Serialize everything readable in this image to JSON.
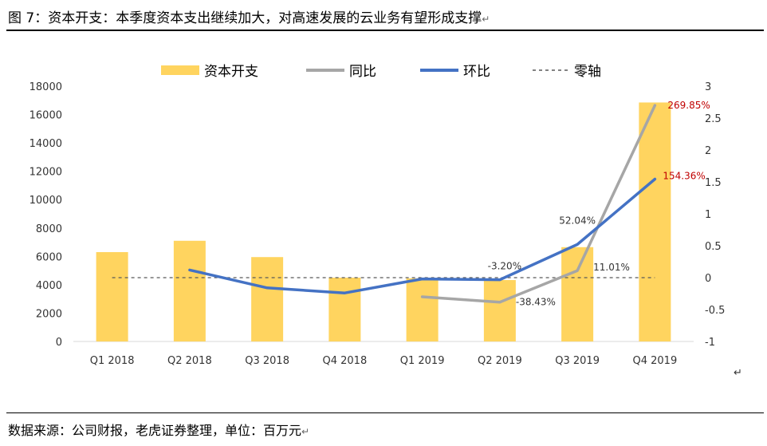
{
  "title": "图 7：资本开支：本季度资本支出继续加大，对高速发展的云业务有望形成支撑",
  "title_mark": "↵",
  "source": "数据来源：公司财报，老虎证券整理，单位：百万元",
  "source_mark": "↵",
  "stray_mark": "↵",
  "colors": {
    "capex": "#FFD45F",
    "yoy": "#A6A6A6",
    "qoq": "#4472C4",
    "zero": "#595959",
    "label_red": "#C00000"
  },
  "chart_data": {
    "type": "bar",
    "categories": [
      "Q1 2018",
      "Q2 2018",
      "Q3 2018",
      "Q4 2018",
      "Q1 2019",
      "Q2 2019",
      "Q3 2019",
      "Q4 2019"
    ],
    "y_left": {
      "range": [
        0,
        18000
      ],
      "ticks": [
        "0",
        "2000",
        "4000",
        "6000",
        "8000",
        "10000",
        "12000",
        "14000",
        "16000",
        "18000"
      ]
    },
    "y_right": {
      "range": [
        -1,
        3
      ],
      "ticks": [
        "-1",
        "-0.5",
        "0",
        "0.5",
        "1",
        "1.5",
        "2",
        "2.5",
        "3"
      ]
    },
    "legend": [
      "资本开支",
      "同比",
      "环比",
      "零轴"
    ],
    "legend_position": "top",
    "grid": false,
    "series": [
      {
        "name": "资本开支",
        "type": "bar",
        "axis": "left",
        "values": [
          6300,
          7100,
          5950,
          4500,
          4450,
          4330,
          6650,
          16850
        ]
      },
      {
        "name": "同比",
        "type": "line",
        "axis": "right",
        "values": [
          null,
          null,
          null,
          null,
          -0.3,
          -0.3843,
          0.1101,
          2.6985
        ]
      },
      {
        "name": "环比",
        "type": "line",
        "axis": "right",
        "values": [
          null,
          0.12,
          -0.16,
          -0.24,
          -0.02,
          -0.032,
          0.5204,
          1.5436
        ]
      },
      {
        "name": "零轴",
        "type": "reference",
        "axis": "right",
        "value": 0
      }
    ],
    "annotations": [
      {
        "text": "269.85%",
        "series": "同比",
        "index": 7,
        "color": "red"
      },
      {
        "text": "154.36%",
        "series": "环比",
        "index": 7,
        "color": "red"
      },
      {
        "text": "52.04%",
        "series": "环比",
        "index": 6,
        "color": "dark"
      },
      {
        "text": "-3.20%",
        "series": "环比",
        "index": 5,
        "color": "dark"
      },
      {
        "text": "-38.43%",
        "series": "同比",
        "index": 5,
        "color": "dark"
      },
      {
        "text": "11.01%",
        "series": "同比",
        "index": 6,
        "color": "dark"
      }
    ]
  }
}
